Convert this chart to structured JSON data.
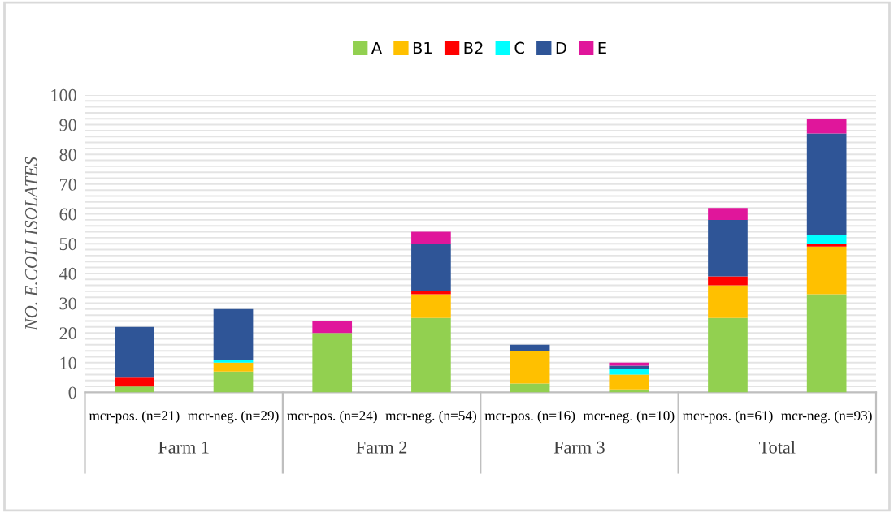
{
  "chart_data": {
    "type": "bar",
    "stacked": true,
    "ylabel": "NO. E.COLI ISOLATES",
    "categories": [
      "mcr-pos. (n=21)",
      "mcr-neg. (n=29)",
      "mcr-pos. (n=24)",
      "mcr-neg. (n=54)",
      "mcr-pos. (n=16)",
      "mcr-neg. (n=10)",
      "mcr-pos. (n=61)",
      "mcr-neg. (n=93)"
    ],
    "series": [
      {
        "name": "A",
        "color": "#92d050",
        "values": [
          2,
          7,
          20,
          25,
          3,
          1,
          25,
          33
        ]
      },
      {
        "name": "B1",
        "color": "#ffc000",
        "values": [
          0,
          3,
          0,
          8,
          11,
          5,
          11,
          16
        ]
      },
      {
        "name": "B2",
        "color": "#ff0000",
        "values": [
          3,
          0,
          0,
          1,
          0,
          0,
          3,
          1
        ]
      },
      {
        "name": "C",
        "color": "#00ffff",
        "values": [
          0,
          1,
          0,
          0,
          0,
          2,
          0,
          3
        ]
      },
      {
        "name": "D",
        "color": "#2f5597",
        "values": [
          17,
          17,
          0,
          16,
          2,
          1,
          19,
          34
        ]
      },
      {
        "name": "E",
        "color": "#e0169b",
        "values": [
          0,
          0,
          4,
          4,
          0,
          1,
          4,
          5
        ]
      }
    ],
    "annotations": [
      "Farm 1",
      "Farm 2",
      "Farm 3",
      "Total"
    ],
    "ylim": [
      0,
      100
    ],
    "yticks": [
      0,
      {
        "value": 2,
        "label": null
      },
      {
        "value": 4,
        "label": null
      },
      {
        "value": 6,
        "label": null
      },
      {
        "value": 8,
        "label": null
      },
      10,
      {
        "value": 12,
        "label": null
      },
      {
        "value": 14,
        "label": null
      },
      {
        "value": 16,
        "label": null
      },
      {
        "value": 18,
        "label": null
      },
      20,
      {
        "value": 22,
        "label": null
      },
      {
        "value": 24,
        "label": null
      },
      {
        "value": 26,
        "label": null
      },
      {
        "value": 28,
        "label": null
      },
      30,
      {
        "value": 32,
        "label": null
      },
      {
        "value": 34,
        "label": null
      },
      {
        "value": 36,
        "label": null
      },
      {
        "value": 38,
        "label": null
      },
      40,
      {
        "value": 42,
        "label": null
      },
      {
        "value": 44,
        "label": null
      },
      {
        "value": 46,
        "label": null
      },
      {
        "value": 48,
        "label": null
      },
      50,
      {
        "value": 52,
        "label": null
      },
      {
        "value": 54,
        "label": null
      },
      {
        "value": 56,
        "label": null
      },
      {
        "value": 58,
        "label": null
      },
      60,
      {
        "value": 62,
        "label": null
      },
      {
        "value": 64,
        "label": null
      },
      {
        "value": 66,
        "label": null
      },
      {
        "value": 68,
        "label": null
      },
      70,
      {
        "value": 72,
        "label": null
      },
      {
        "value": 74,
        "label": null
      },
      {
        "value": 76,
        "label": null
      },
      {
        "value": 78,
        "label": null
      },
      80,
      {
        "value": 82,
        "label": null
      },
      {
        "value": 84,
        "label": null
      },
      {
        "value": 86,
        "label": null
      },
      {
        "value": 88,
        "label": null
      },
      90,
      {
        "value": 92,
        "label": null
      },
      {
        "value": 94,
        "label": null
      },
      {
        "value": 96,
        "label": null
      },
      {
        "value": 98,
        "label": null
      },
      100
    ],
    "grid": "y",
    "legend": "top"
  }
}
